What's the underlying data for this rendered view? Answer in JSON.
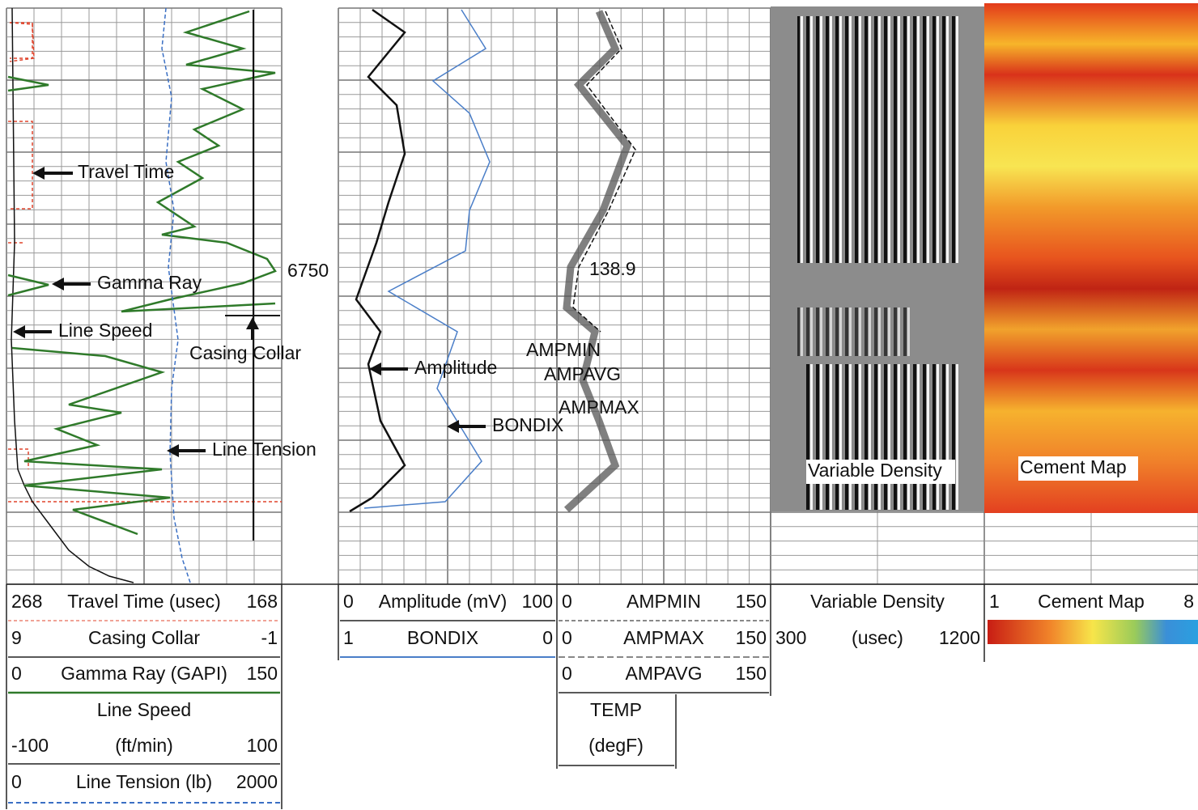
{
  "annotations": {
    "travel_time": "Travel Time",
    "gamma_ray": "Gamma Ray",
    "line_speed": "Line Speed",
    "casing_collar": "Casing Collar",
    "line_tension": "Line Tension",
    "depth": "6750",
    "amplitude": "Amplitude",
    "bondix": "BONDIX",
    "ampmin": "AMPMIN",
    "ampavg": "AMPAVG",
    "ampmax": "AMPMAX",
    "value": "138.9",
    "variable_density": "Variable Density",
    "cement_map": "Cement Map"
  },
  "header": {
    "track1": [
      [
        "268",
        "Travel Time (usec)",
        "168"
      ],
      [
        "9",
        "Casing Collar",
        "-1"
      ],
      [
        "0",
        "Gamma Ray (GAPI)",
        "150"
      ],
      [
        "Line Speed"
      ],
      [
        "-100",
        "(ft/min)",
        "100"
      ],
      [
        "0",
        "Line Tension (lb)",
        "2000"
      ]
    ],
    "track2": [
      [
        "0",
        "Amplitude (mV)",
        "100"
      ],
      [
        "1",
        "BONDIX",
        "0"
      ]
    ],
    "track3": [
      [
        "0",
        "AMPMIN",
        "150"
      ],
      [
        "0",
        "AMPMAX",
        "150"
      ],
      [
        "0",
        "AMPAVG",
        "150"
      ],
      [
        "TEMP"
      ],
      [
        "(degF)"
      ]
    ],
    "vdl": [
      [
        "Variable Density"
      ],
      [
        "300",
        "(usec)",
        "1200"
      ]
    ],
    "cement": [
      [
        "1",
        "Cement Map",
        "8"
      ]
    ]
  }
}
